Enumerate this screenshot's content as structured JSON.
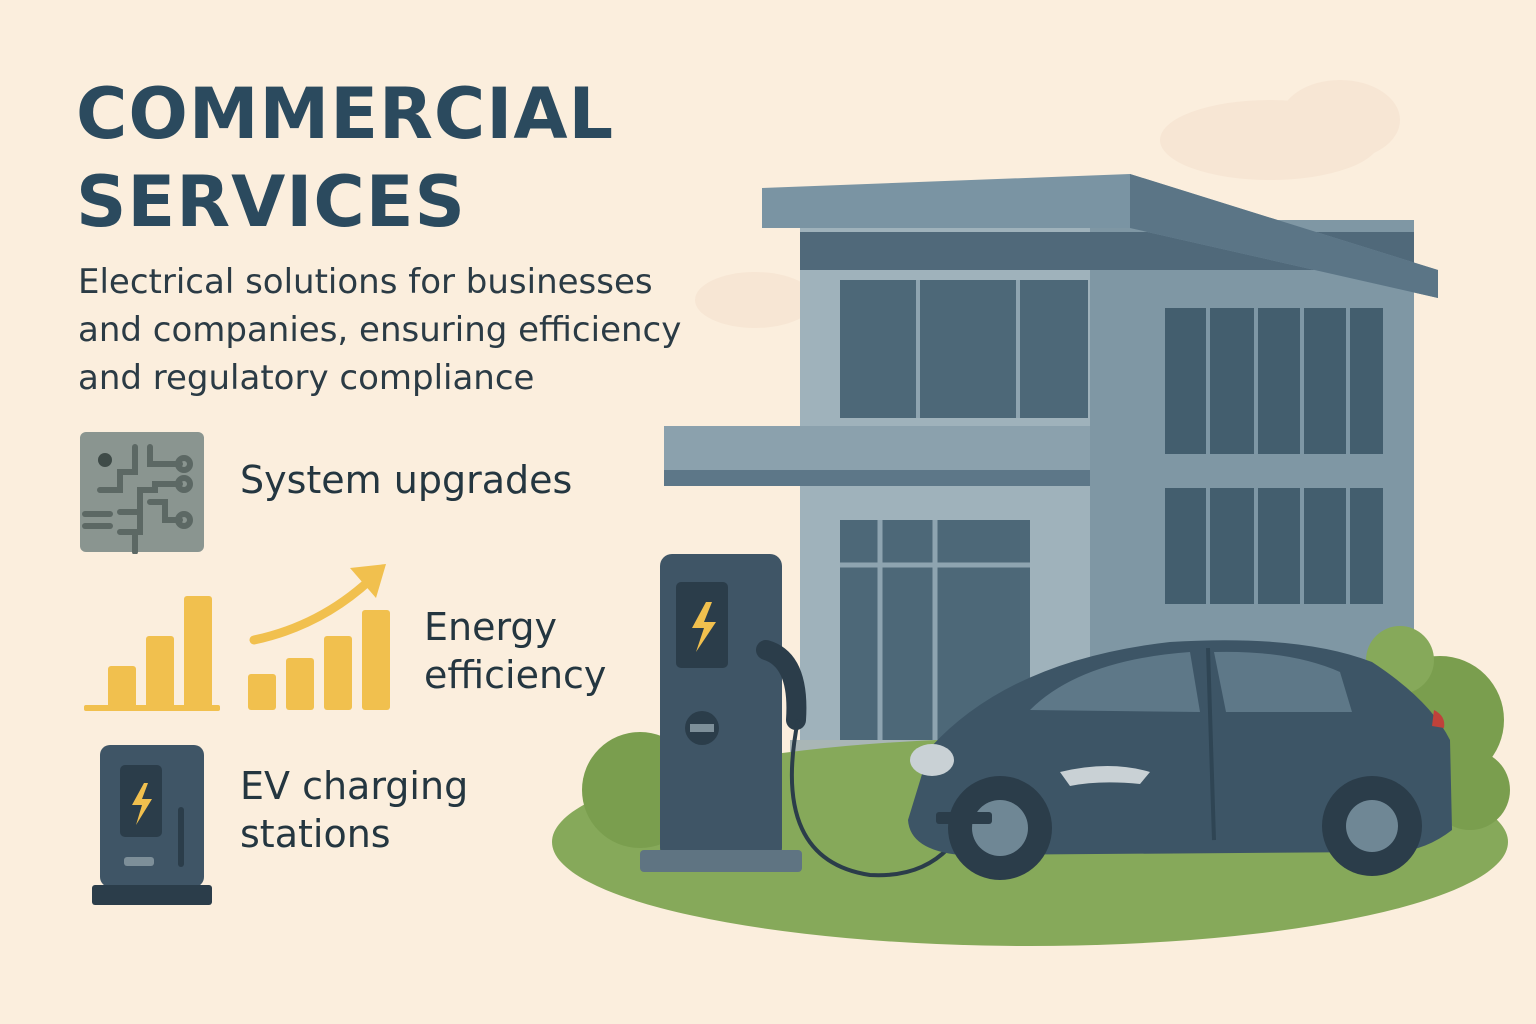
{
  "header": {
    "title_line1": "COMMERCIAL",
    "title_line2": "SERVICES",
    "subtitle": "Electrical solutions for businesses and companies, ensuring efficiency and regulatory compliance"
  },
  "features": [
    {
      "icon": "circuit-board-icon",
      "label": "System upgrades"
    },
    {
      "icon": "bar-chart-growth-icon",
      "label_line1": "Energy",
      "label_line2": "efficiency"
    },
    {
      "icon": "ev-charger-icon",
      "label_line1": "EV charging",
      "label_line2": "stations"
    }
  ],
  "colors": {
    "background": "#fbeedd",
    "title": "#2b4a5e",
    "accent_yellow": "#f1c04e",
    "building": "#6f8a99",
    "car": "#3d5566",
    "grass": "#86a95a"
  }
}
